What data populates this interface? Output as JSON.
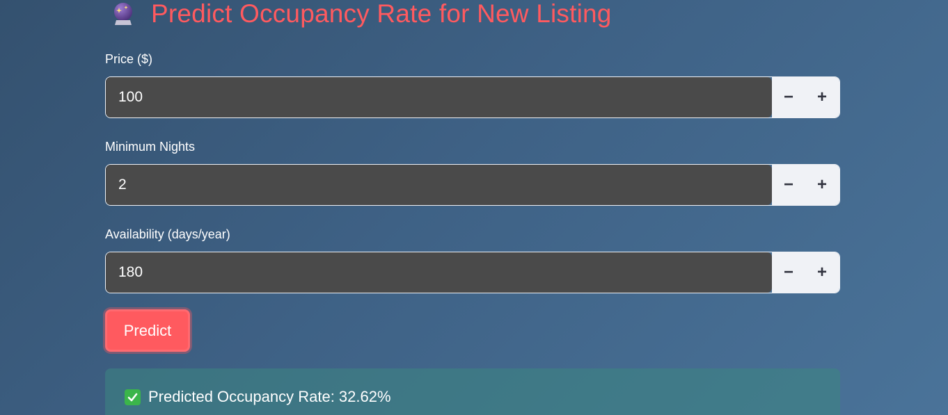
{
  "header": {
    "icon": "crystal-ball-icon",
    "title": "Predict Occupancy Rate for New Listing"
  },
  "fields": [
    {
      "label": "Price ($)",
      "value": "100",
      "decrement": "−",
      "increment": "+"
    },
    {
      "label": "Minimum Nights",
      "value": "2",
      "decrement": "−",
      "increment": "+"
    },
    {
      "label": "Availability (days/year)",
      "value": "180",
      "decrement": "−",
      "increment": "+"
    }
  ],
  "predict_button": {
    "label": "Predict"
  },
  "result": {
    "icon": "check-mark-icon",
    "text": "Predicted Occupancy Rate: 32.62%"
  },
  "colors": {
    "accent": "#ff5a5f",
    "input_bg": "#4a4a4a",
    "stepper_bg": "#f0f2f6",
    "success": "#3bb54a"
  }
}
